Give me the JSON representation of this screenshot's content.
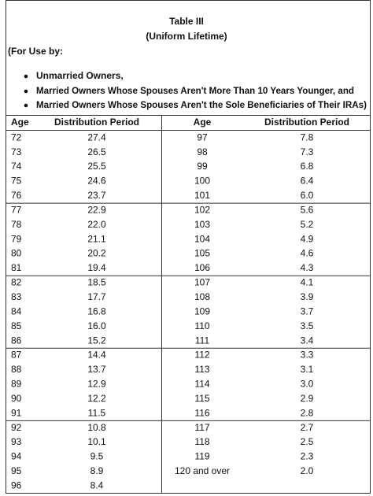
{
  "header": {
    "title": "Table III",
    "subtitle": "(Uniform Lifetime)",
    "intro": "(For Use by:",
    "bullets": [
      "Unmarried Owners,",
      "Married Owners Whose Spouses Aren't More Than 10 Years Younger, and",
      "Married Owners Whose Spouses Aren't the Sole Beneficiaries of Their IRAs)"
    ]
  },
  "table": {
    "columns": [
      "Age",
      "Distribution Period",
      "Age",
      "Distribution Period"
    ],
    "rows": [
      [
        "72",
        "27.4",
        "97",
        "7.8"
      ],
      [
        "73",
        "26.5",
        "98",
        "7.3"
      ],
      [
        "74",
        "25.5",
        "99",
        "6.8"
      ],
      [
        "75",
        "24.6",
        "100",
        "6.4"
      ],
      [
        "76",
        "23.7",
        "101",
        "6.0"
      ],
      [
        "77",
        "22.9",
        "102",
        "5.6"
      ],
      [
        "78",
        "22.0",
        "103",
        "5.2"
      ],
      [
        "79",
        "21.1",
        "104",
        "4.9"
      ],
      [
        "80",
        "20.2",
        "105",
        "4.6"
      ],
      [
        "81",
        "19.4",
        "106",
        "4.3"
      ],
      [
        "82",
        "18.5",
        "107",
        "4.1"
      ],
      [
        "83",
        "17.7",
        "108",
        "3.9"
      ],
      [
        "84",
        "16.8",
        "109",
        "3.7"
      ],
      [
        "85",
        "16.0",
        "110",
        "3.5"
      ],
      [
        "86",
        "15.2",
        "111",
        "3.4"
      ],
      [
        "87",
        "14.4",
        "112",
        "3.3"
      ],
      [
        "88",
        "13.7",
        "113",
        "3.1"
      ],
      [
        "89",
        "12.9",
        "114",
        "3.0"
      ],
      [
        "90",
        "12.2",
        "115",
        "2.9"
      ],
      [
        "91",
        "11.5",
        "116",
        "2.8"
      ],
      [
        "92",
        "10.8",
        "117",
        "2.7"
      ],
      [
        "93",
        "10.1",
        "118",
        "2.5"
      ],
      [
        "94",
        "9.5",
        "119",
        "2.3"
      ],
      [
        "95",
        "8.9",
        "120 and over",
        "2.0"
      ],
      [
        "96",
        "8.4"
      ]
    ]
  }
}
